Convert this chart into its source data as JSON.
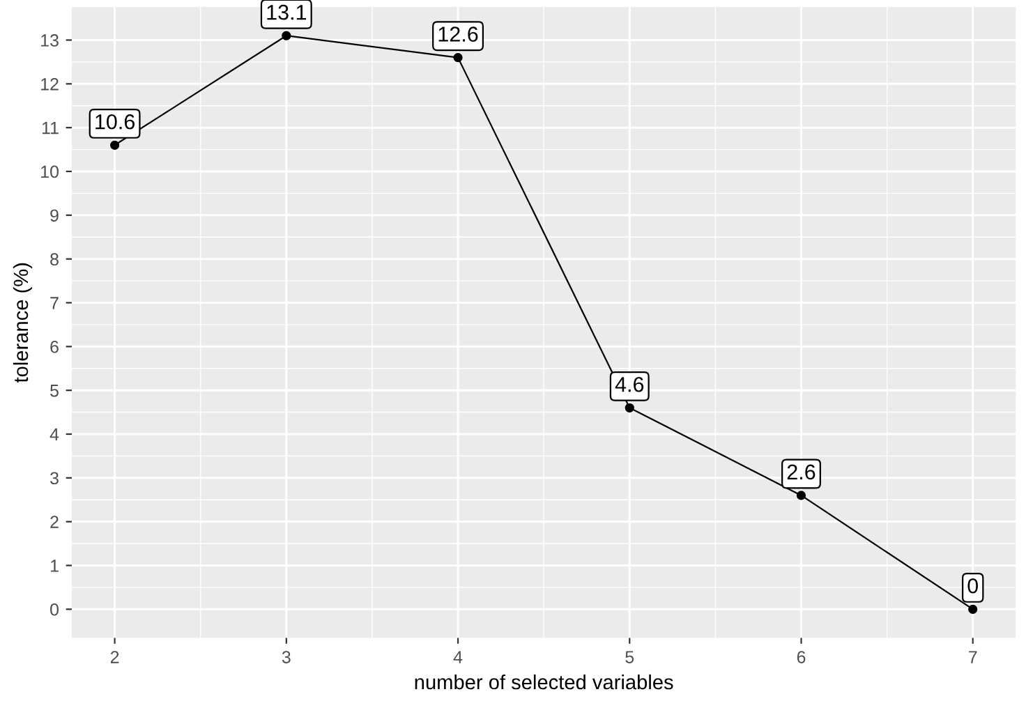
{
  "chart_data": {
    "type": "line",
    "xlabel": "number of selected variables",
    "ylabel": "tolerance (%)",
    "x": [
      2,
      3,
      4,
      5,
      6,
      7
    ],
    "series": [
      {
        "color": "#000000",
        "values": [
          10.6,
          13.1,
          12.6,
          4.6,
          2.6,
          0
        ]
      }
    ],
    "xlim": [
      1.75,
      7.25
    ],
    "ylim": [
      -0.655,
      13.755
    ],
    "xticks": [
      2,
      3,
      4,
      5,
      6,
      7
    ],
    "yticks": [
      0,
      1,
      2,
      3,
      4,
      5,
      6,
      7,
      8,
      9,
      10,
      11,
      12,
      13
    ],
    "grid": true,
    "marker": "circle",
    "line_style": "solid",
    "data_labels": true
  }
}
